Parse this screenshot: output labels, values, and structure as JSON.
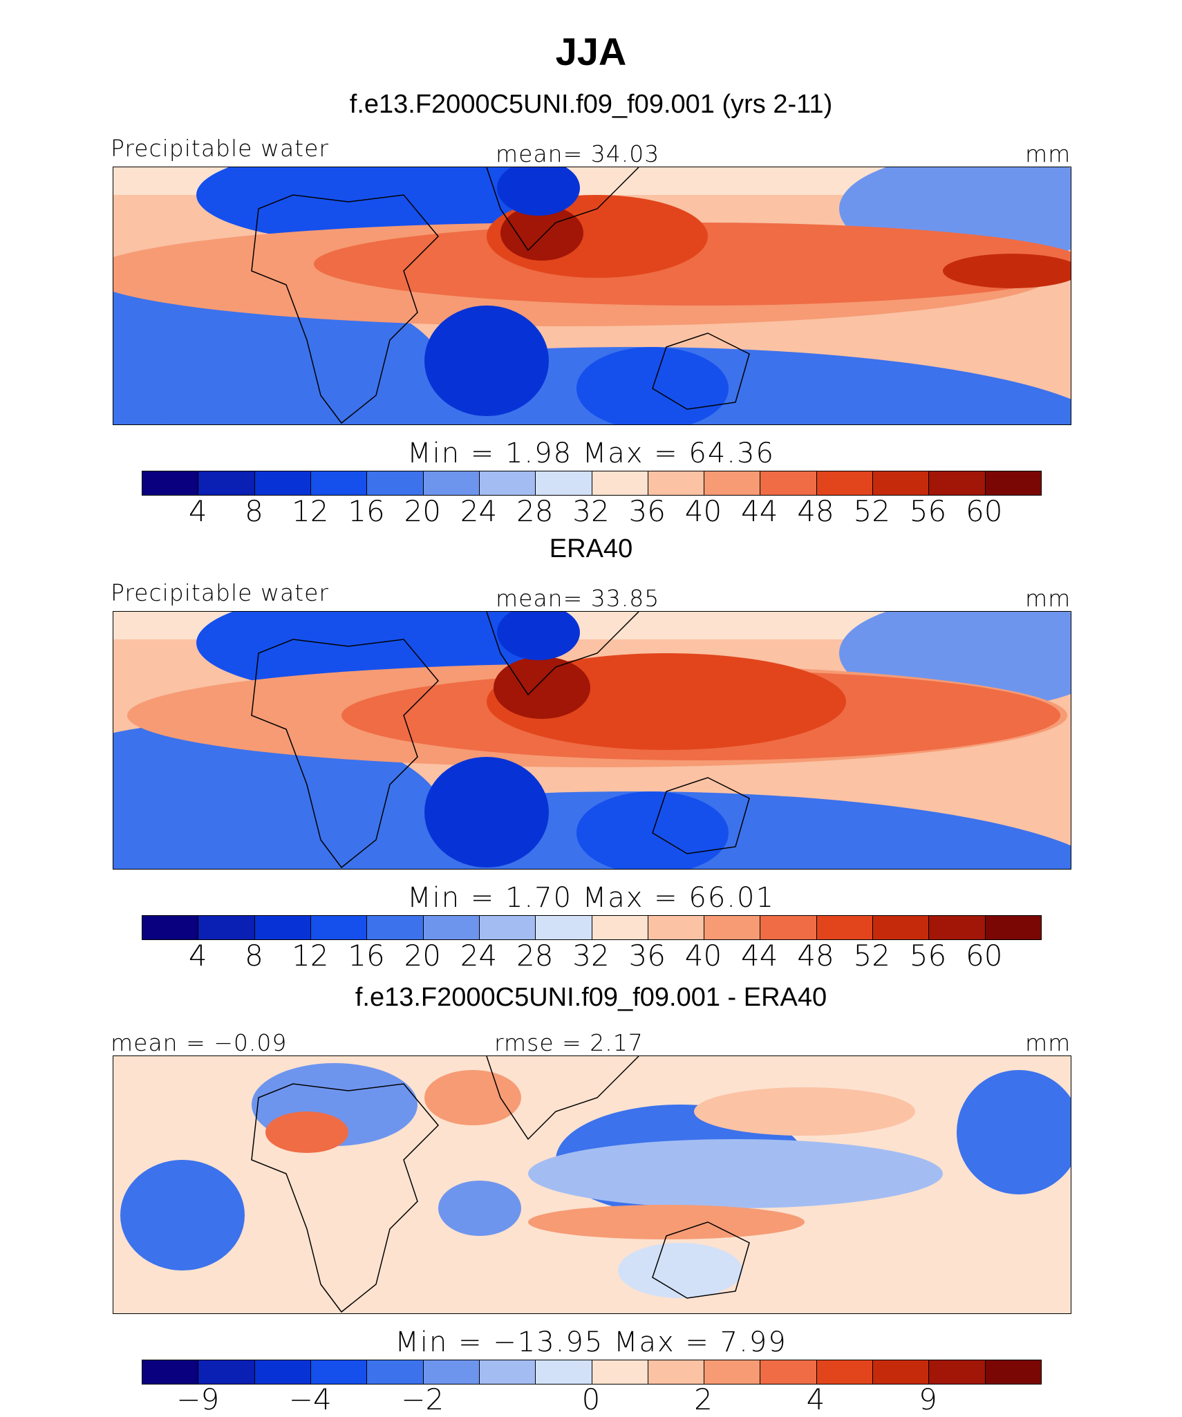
{
  "title": "JJA",
  "panel1": {
    "subtitle": "f.e13.F2000C5UNI.f09_f09.001 (yrs 2-11)",
    "left_label": "Precipitable water",
    "center_label": "mean=   34.03",
    "right_label": "mm",
    "minmax": "Min  =     1.98  Max  =    64.36",
    "ticks": [
      "4",
      "8",
      "12",
      "16",
      "20",
      "24",
      "28",
      "32",
      "36",
      "40",
      "44",
      "48",
      "52",
      "56",
      "60"
    ]
  },
  "panel2": {
    "subtitle": "ERA40",
    "left_label": "Precipitable water",
    "center_label": "mean=   33.85",
    "right_label": "mm",
    "minmax": "Min  =     1.70  Max  =    66.01",
    "ticks": [
      "4",
      "8",
      "12",
      "16",
      "20",
      "24",
      "28",
      "32",
      "36",
      "40",
      "44",
      "48",
      "52",
      "56",
      "60"
    ]
  },
  "panel3": {
    "subtitle": "f.e13.F2000C5UNI.f09_f09.001 - ERA40",
    "left_label": "mean  =   −0.09",
    "center_label": "rmse  =    2.17",
    "right_label": "mm",
    "minmax": "Min  =  −13.95  Max  =     7.99",
    "ticks": [
      "−9",
      "−4",
      "−2",
      "0",
      "2",
      "4",
      "9"
    ]
  },
  "colors": [
    "#08007f",
    "#0a1fb3",
    "#0733d6",
    "#1550ed",
    "#3c72ec",
    "#6e95ee",
    "#a3bdf3",
    "#d2e1f8",
    "#fde2cf",
    "#fbc2a4",
    "#f69b74",
    "#ef6c45",
    "#e2451c",
    "#c52b0b",
    "#a11606",
    "#7a0703"
  ]
}
